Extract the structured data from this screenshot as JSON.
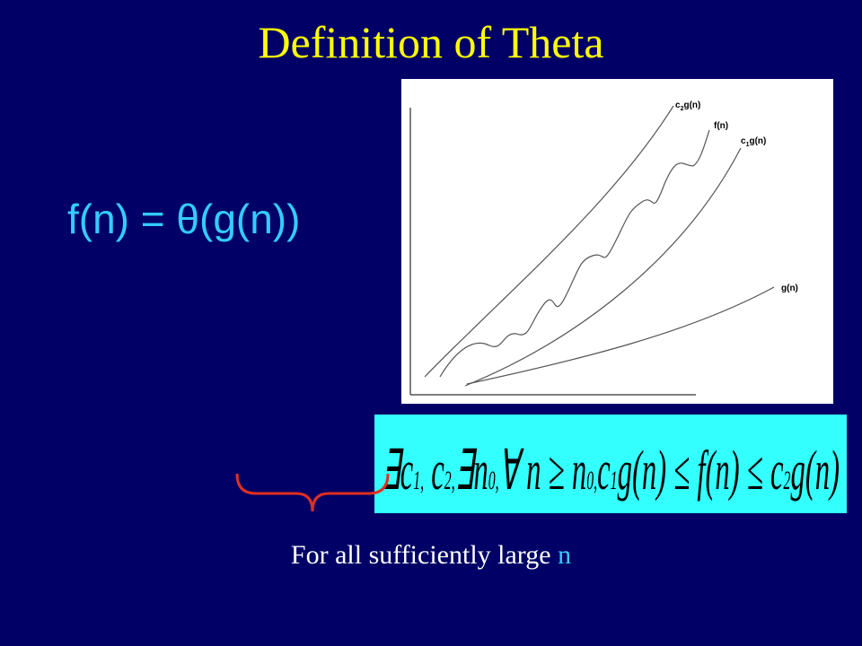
{
  "title": "Definition of  Theta",
  "statement": "f(n) = θ(g(n))",
  "graph": {
    "labels": [
      {
        "c": "c",
        "sub": "2",
        "rest": "g(n)"
      },
      {
        "c": "f(n)",
        "sub": "",
        "rest": ""
      },
      {
        "c": "c",
        "sub": "1",
        "rest": "g(n)"
      },
      {
        "c": "g(n)",
        "sub": "",
        "rest": ""
      }
    ]
  },
  "formula": [
    "∃c",
    "1,",
    " c",
    "2,",
    "∃n",
    "0,",
    "∀ n ≥ n",
    "0,",
    "c",
    "1",
    "g(n) ≤ f(n) ≤ c",
    "2",
    "g(n)"
  ],
  "caption": {
    "text": "For all sufficiently large ",
    "var": "n"
  }
}
